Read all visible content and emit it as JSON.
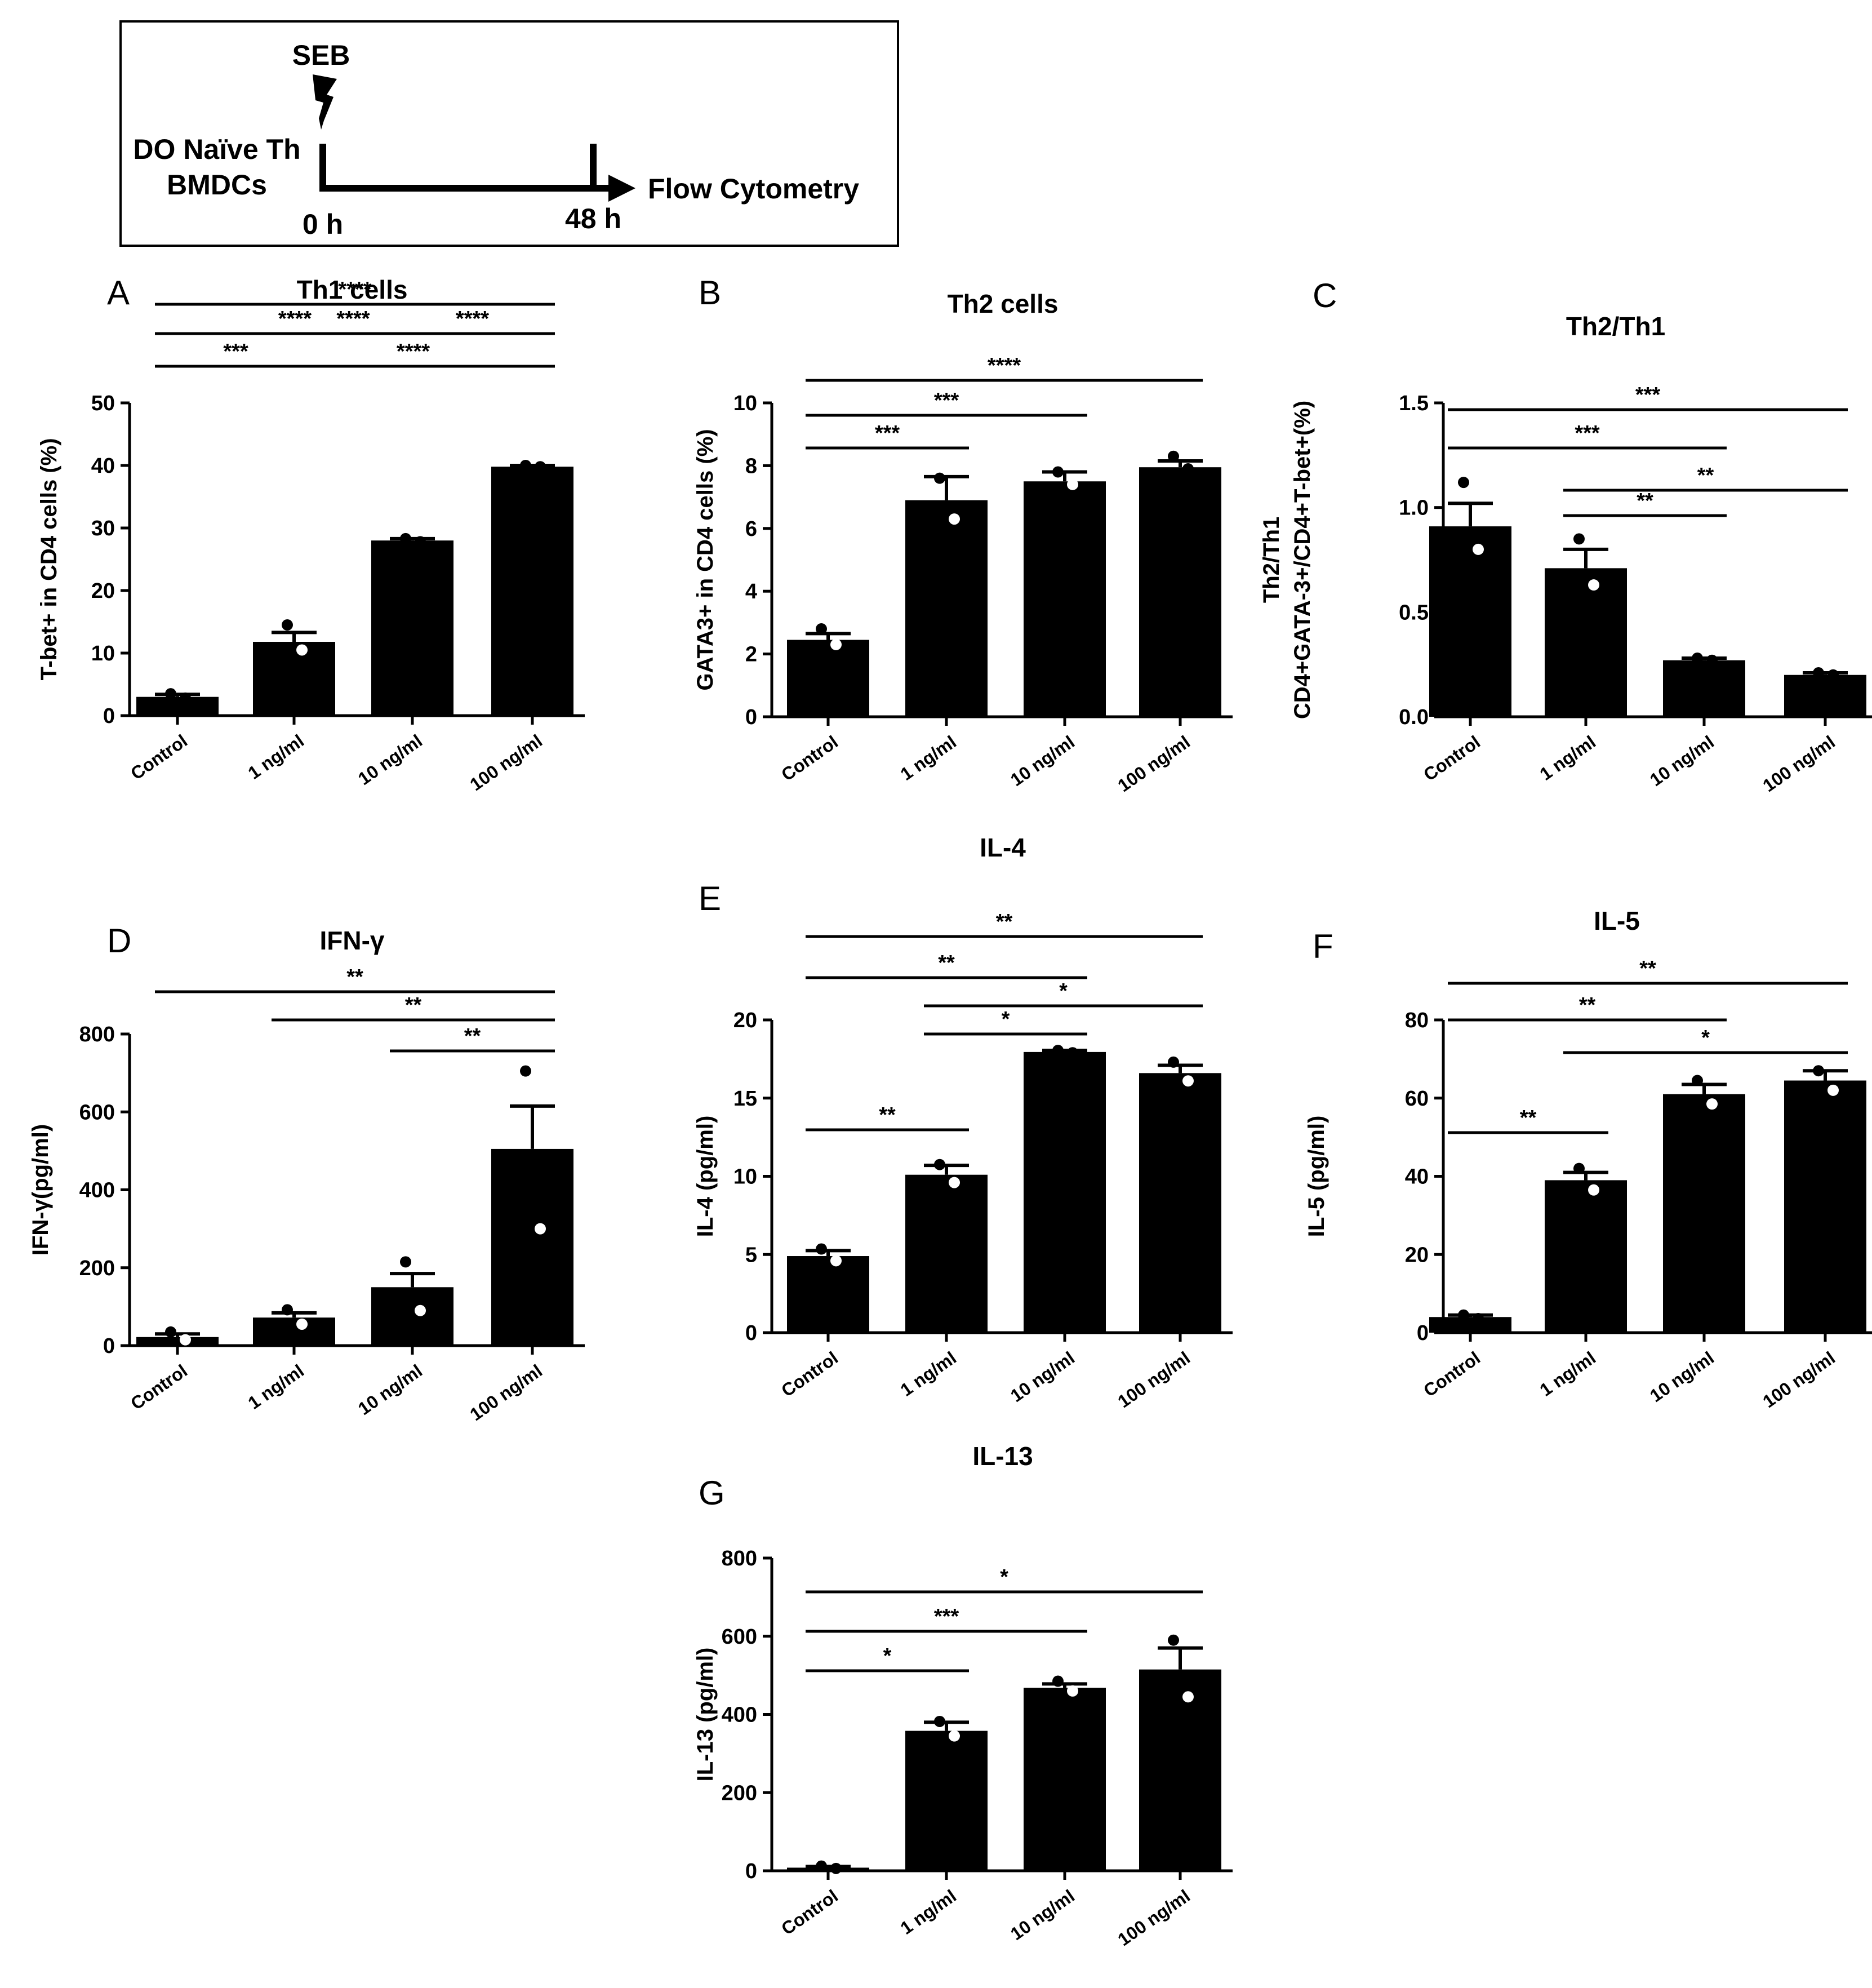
{
  "schematic": {
    "stimulus": "SEB",
    "left_label_line1": "DO Naïve Th",
    "left_label_line2": "BMDCs",
    "start_time": "0 h",
    "end_time": "48 h",
    "readout": "Flow Cytometry"
  },
  "chart_data": [
    {
      "id": "A",
      "type": "bar",
      "panel_label": "A",
      "title": "Th1 cells",
      "ylabel": "T-bet+ in CD4 cells (%)",
      "ylim": [
        0,
        50
      ],
      "yticks": [
        0,
        10,
        20,
        30,
        40,
        50
      ],
      "ytick_labels": [
        "0",
        "10",
        "20",
        "30",
        "40",
        "50"
      ],
      "categories": [
        "Control",
        "1 ng/ml",
        "10 ng/ml",
        "100 ng/ml"
      ],
      "values": [
        3,
        11.8,
        28,
        39.8
      ],
      "errors": [
        0.4,
        1.5,
        0.3,
        0.2
      ],
      "points": [
        [
          3.5,
          2.8
        ],
        [
          14.5,
          10.5
        ],
        [
          28.3,
          27.8
        ],
        [
          40,
          39.8
        ]
      ],
      "comparisons": [
        {
          "from": 0,
          "to": 1,
          "label": "***"
        },
        {
          "from": 1,
          "to": 3,
          "label": "****"
        },
        {
          "from": 1,
          "to": 2,
          "label": "****"
        },
        {
          "from": 0,
          "to": 2,
          "label": "****"
        },
        {
          "from": 2,
          "to": 3,
          "label": "****"
        },
        {
          "from": 0,
          "to": 3,
          "label": "****"
        }
      ]
    },
    {
      "id": "B",
      "type": "bar",
      "panel_label": "B",
      "title": "Th2 cells",
      "ylabel": "GATA3+ in CD4 cells (%)",
      "ylim": [
        0,
        10
      ],
      "yticks": [
        0,
        2,
        4,
        6,
        8,
        10
      ],
      "ytick_labels": [
        "0",
        "2",
        "4",
        "6",
        "8",
        "10"
      ],
      "categories": [
        "Control",
        "1 ng/ml",
        "10 ng/ml",
        "100 ng/ml"
      ],
      "values": [
        2.45,
        6.9,
        7.5,
        7.95
      ],
      "errors": [
        0.2,
        0.75,
        0.3,
        0.2
      ],
      "points": [
        [
          2.8,
          2.3
        ],
        [
          7.6,
          6.3
        ],
        [
          7.8,
          7.4
        ],
        [
          8.3,
          7.9
        ]
      ],
      "comparisons": [
        {
          "from": 0,
          "to": 1,
          "label": "***"
        },
        {
          "from": 0,
          "to": 2,
          "label": "***"
        },
        {
          "from": 0,
          "to": 3,
          "label": "****"
        }
      ]
    },
    {
      "id": "C",
      "type": "bar",
      "panel_label": "C",
      "title": "Th2/Th1",
      "ylabel_line1": "Th2/Th1",
      "ylabel_line2": "CD4+GATA-3+/CD4+T-bet+(%)",
      "ylim": [
        0,
        1.5
      ],
      "yticks": [
        0,
        0.5,
        1,
        1.5
      ],
      "ytick_labels": [
        "0.0",
        "0.5",
        "1.0",
        "1.5"
      ],
      "categories": [
        "Control",
        "1 ng/ml",
        "10 ng/ml",
        "100 ng/ml"
      ],
      "values": [
        0.91,
        0.71,
        0.27,
        0.2
      ],
      "errors": [
        0.11,
        0.09,
        0.01,
        0.01
      ],
      "points": [
        [
          1.12,
          0.8
        ],
        [
          0.85,
          0.63
        ],
        [
          0.28,
          0.27
        ],
        [
          0.21,
          0.2
        ]
      ],
      "comparisons": [
        {
          "from": 1,
          "to": 2,
          "label": "**"
        },
        {
          "from": 1,
          "to": 3,
          "label": "**"
        },
        {
          "from": 0,
          "to": 2,
          "label": "***"
        },
        {
          "from": 0,
          "to": 3,
          "label": "***"
        }
      ]
    },
    {
      "id": "D",
      "type": "bar",
      "panel_label": "D",
      "title": "IFN-γ",
      "ylabel": "IFN-γ(pg/ml)",
      "ylim": [
        0,
        800
      ],
      "yticks": [
        0,
        200,
        400,
        600,
        800
      ],
      "ytick_labels": [
        "0",
        "200",
        "400",
        "600",
        "800"
      ],
      "categories": [
        "Control",
        "1 ng/ml",
        "10 ng/ml",
        "100 ng/ml"
      ],
      "values": [
        22,
        72,
        150,
        505
      ],
      "errors": [
        8,
        12,
        35,
        110
      ],
      "points": [
        [
          35,
          15
        ],
        [
          92,
          55
        ],
        [
          215,
          90
        ],
        [
          705,
          300
        ]
      ],
      "comparisons": [
        {
          "from": 2,
          "to": 3,
          "label": "**"
        },
        {
          "from": 1,
          "to": 3,
          "label": "**"
        },
        {
          "from": 0,
          "to": 3,
          "label": "**"
        }
      ]
    },
    {
      "id": "E",
      "type": "bar",
      "panel_label": "E",
      "title": "IL-4",
      "ylabel": "IL-4 (pg/ml)",
      "ylim": [
        0,
        20
      ],
      "yticks": [
        0,
        5,
        10,
        15,
        20
      ],
      "ytick_labels": [
        "0",
        "5",
        "10",
        "15",
        "20"
      ],
      "categories": [
        "Control",
        "1 ng/ml",
        "10 ng/ml",
        "100 ng/ml"
      ],
      "values": [
        4.9,
        10.1,
        17.95,
        16.6
      ],
      "errors": [
        0.35,
        0.6,
        0.1,
        0.5
      ],
      "points": [
        [
          5.35,
          4.6
        ],
        [
          10.75,
          9.6
        ],
        [
          18.05,
          17.9
        ],
        [
          17.3,
          16.1
        ]
      ],
      "comparisons": [
        {
          "from": 0,
          "to": 1,
          "label": "**"
        },
        {
          "from": 1,
          "to": 2,
          "label": "*"
        },
        {
          "from": 1,
          "to": 3,
          "label": "*"
        },
        {
          "from": 0,
          "to": 2,
          "label": "**"
        },
        {
          "from": 0,
          "to": 3,
          "label": "**"
        }
      ]
    },
    {
      "id": "F",
      "type": "bar",
      "panel_label": "F",
      "title": "IL-5",
      "ylabel": "IL-5 (pg/ml)",
      "ylim": [
        0,
        80
      ],
      "yticks": [
        0,
        20,
        40,
        60,
        80
      ],
      "ytick_labels": [
        "0",
        "20",
        "40",
        "60",
        "80"
      ],
      "categories": [
        "Control",
        "1 ng/ml",
        "10 ng/ml",
        "100 ng/ml"
      ],
      "values": [
        4,
        39,
        61,
        64.5
      ],
      "errors": [
        0.5,
        2,
        2.5,
        2.5
      ],
      "points": [
        [
          4.5,
          3.6
        ],
        [
          42,
          36.5
        ],
        [
          64.5,
          58.5
        ],
        [
          67,
          62
        ]
      ],
      "comparisons": [
        {
          "from": 0,
          "to": 1,
          "label": "**"
        },
        {
          "from": 1,
          "to": 3,
          "label": "*"
        },
        {
          "from": 0,
          "to": 2,
          "label": "**"
        },
        {
          "from": 0,
          "to": 3,
          "label": "**"
        }
      ]
    },
    {
      "id": "G",
      "type": "bar",
      "panel_label": "G",
      "title": "IL-13",
      "ylabel": "IL-13 (pg/ml)",
      "ylim": [
        0,
        800
      ],
      "yticks": [
        0,
        200,
        400,
        600,
        800
      ],
      "ytick_labels": [
        "0",
        "200",
        "400",
        "600",
        "800"
      ],
      "categories": [
        "Control",
        "1 ng/ml",
        "10 ng/ml",
        "100 ng/ml"
      ],
      "values": [
        8,
        358,
        468,
        515
      ],
      "errors": [
        3,
        22,
        10,
        55
      ],
      "points": [
        [
          12,
          6
        ],
        [
          382,
          345
        ],
        [
          485,
          460
        ],
        [
          590,
          445
        ]
      ],
      "comparisons": [
        {
          "from": 0,
          "to": 1,
          "label": "*"
        },
        {
          "from": 0,
          "to": 2,
          "label": "***"
        },
        {
          "from": 0,
          "to": 3,
          "label": "*"
        }
      ]
    }
  ]
}
